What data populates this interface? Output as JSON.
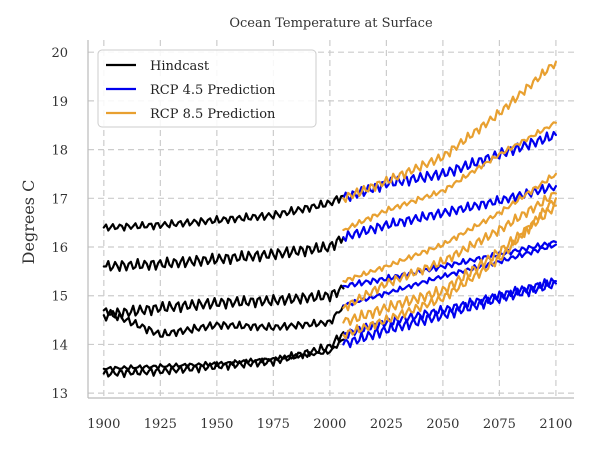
{
  "chart_data": {
    "type": "line",
    "title": "Ocean Temperature at Surface",
    "xlabel": "",
    "ylabel": "Degrees C",
    "xlim": [
      1893,
      2108
    ],
    "ylim": [
      12.9,
      20.25
    ],
    "xticks": [
      1900,
      1925,
      1950,
      1975,
      2000,
      2025,
      2050,
      2075,
      2100
    ],
    "yticks": [
      13,
      14,
      15,
      16,
      17,
      18,
      19,
      20
    ],
    "grid": true,
    "legend_position": "top-left",
    "legend": [
      {
        "label": "Hindcast",
        "color": "#000000"
      },
      {
        "label": "RCP 4.5 Prediction",
        "color": "#0000ee"
      },
      {
        "label": "RCP 8.5 Prediction",
        "color": "#e8a030"
      }
    ],
    "series": [
      {
        "group": "Hindcast",
        "color": "#000000",
        "x": [
          1900,
          1925,
          1950,
          1975,
          2000,
          2006
        ],
        "y": [
          16.4,
          16.45,
          16.55,
          16.65,
          16.9,
          17.05
        ]
      },
      {
        "group": "Hindcast",
        "color": "#000000",
        "x": [
          1900,
          1925,
          1950,
          1975,
          2000,
          2006
        ],
        "y": [
          15.6,
          15.65,
          15.75,
          15.85,
          16.0,
          16.2
        ]
      },
      {
        "group": "Hindcast",
        "color": "#000000",
        "x": [
          1900,
          1925,
          1950,
          1975,
          2000,
          2006
        ],
        "y": [
          14.6,
          14.75,
          14.85,
          14.9,
          15.0,
          15.15
        ]
      },
      {
        "group": "Hindcast",
        "color": "#000000",
        "x": [
          1900,
          1925,
          1950,
          1975,
          2000,
          2006
        ],
        "y": [
          14.7,
          14.2,
          14.4,
          14.35,
          14.45,
          14.8
        ]
      },
      {
        "group": "Hindcast",
        "color": "#000000",
        "x": [
          1900,
          1925,
          1950,
          1975,
          2000,
          2006
        ],
        "y": [
          13.5,
          13.55,
          13.6,
          13.7,
          13.85,
          14.1
        ]
      },
      {
        "group": "Hindcast",
        "color": "#000000",
        "x": [
          1900,
          1925,
          1950,
          1975,
          2000,
          2006
        ],
        "y": [
          13.4,
          13.45,
          13.55,
          13.65,
          13.95,
          14.25
        ]
      },
      {
        "group": "RCP 4.5 Prediction",
        "color": "#0000ee",
        "x": [
          2006,
          2025,
          2050,
          2075,
          2100
        ],
        "y": [
          17.0,
          17.3,
          17.5,
          17.9,
          18.3
        ]
      },
      {
        "group": "RCP 4.5 Prediction",
        "color": "#0000ee",
        "x": [
          2006,
          2025,
          2050,
          2075,
          2100
        ],
        "y": [
          16.2,
          16.45,
          16.7,
          16.95,
          17.25
        ]
      },
      {
        "group": "RCP 4.5 Prediction",
        "color": "#0000ee",
        "x": [
          2006,
          2025,
          2050,
          2075,
          2100
        ],
        "y": [
          15.2,
          15.35,
          15.6,
          15.85,
          16.1
        ]
      },
      {
        "group": "RCP 4.5 Prediction",
        "color": "#0000ee",
        "x": [
          2006,
          2025,
          2050,
          2075,
          2100
        ],
        "y": [
          14.8,
          15.05,
          15.4,
          15.7,
          16.05
        ]
      },
      {
        "group": "RCP 4.5 Prediction",
        "color": "#0000ee",
        "x": [
          2006,
          2025,
          2050,
          2075,
          2100
        ],
        "y": [
          14.2,
          14.45,
          14.7,
          15.0,
          15.3
        ]
      },
      {
        "group": "RCP 4.5 Prediction",
        "color": "#0000ee",
        "x": [
          2006,
          2025,
          2050,
          2075,
          2100
        ],
        "y": [
          14.0,
          14.3,
          14.6,
          14.95,
          15.25
        ]
      },
      {
        "group": "RCP 8.5 Prediction",
        "color": "#e8a030",
        "x": [
          2006,
          2025,
          2050,
          2075,
          2100
        ],
        "y": [
          17.0,
          17.35,
          17.85,
          18.75,
          19.8
        ]
      },
      {
        "group": "RCP 8.5 Prediction",
        "color": "#e8a030",
        "x": [
          2006,
          2025,
          2050,
          2075,
          2100
        ],
        "y": [
          16.35,
          16.75,
          17.15,
          17.9,
          18.55
        ]
      },
      {
        "group": "RCP 8.5 Prediction",
        "color": "#e8a030",
        "x": [
          2006,
          2025,
          2050,
          2075,
          2100
        ],
        "y": [
          15.3,
          15.6,
          16.05,
          16.7,
          17.5
        ]
      },
      {
        "group": "RCP 8.5 Prediction",
        "color": "#e8a030",
        "x": [
          2006,
          2025,
          2050,
          2075,
          2100
        ],
        "y": [
          14.75,
          15.25,
          15.7,
          16.35,
          17.1
        ]
      },
      {
        "group": "RCP 8.5 Prediction",
        "color": "#e8a030",
        "x": [
          2006,
          2025,
          2050,
          2075,
          2100
        ],
        "y": [
          14.45,
          14.75,
          15.1,
          15.9,
          16.85
        ]
      },
      {
        "group": "RCP 8.5 Prediction",
        "color": "#e8a030",
        "x": [
          2006,
          2025,
          2050,
          2075,
          2100
        ],
        "y": [
          14.2,
          14.5,
          14.95,
          15.75,
          17.0
        ]
      }
    ]
  }
}
